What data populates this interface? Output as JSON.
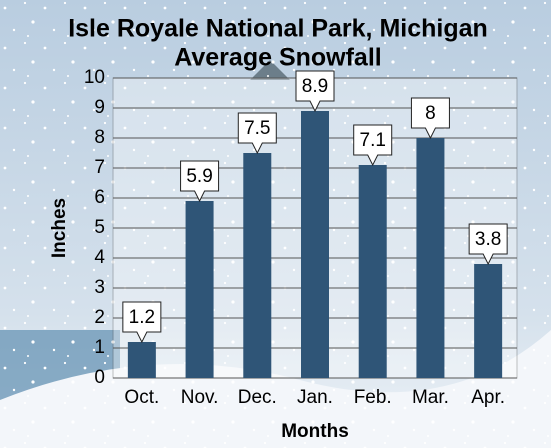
{
  "chart_data": {
    "type": "bar",
    "title": [
      "Isle Royale National Park, Michigan",
      "Average Snowfall"
    ],
    "x_label": "Months",
    "y_label": "Inches",
    "categories": [
      "Oct.",
      "Nov.",
      "Dec.",
      "Jan.",
      "Feb.",
      "Mar.",
      "Apr."
    ],
    "values": [
      1.2,
      5.9,
      7.5,
      8.9,
      7.1,
      8,
      3.8
    ],
    "color": "#2f5577",
    "ylim": [
      0,
      10
    ],
    "yticks": [
      0,
      1,
      2,
      3,
      4,
      5,
      6,
      7,
      8,
      9,
      10
    ],
    "grid": true
  }
}
